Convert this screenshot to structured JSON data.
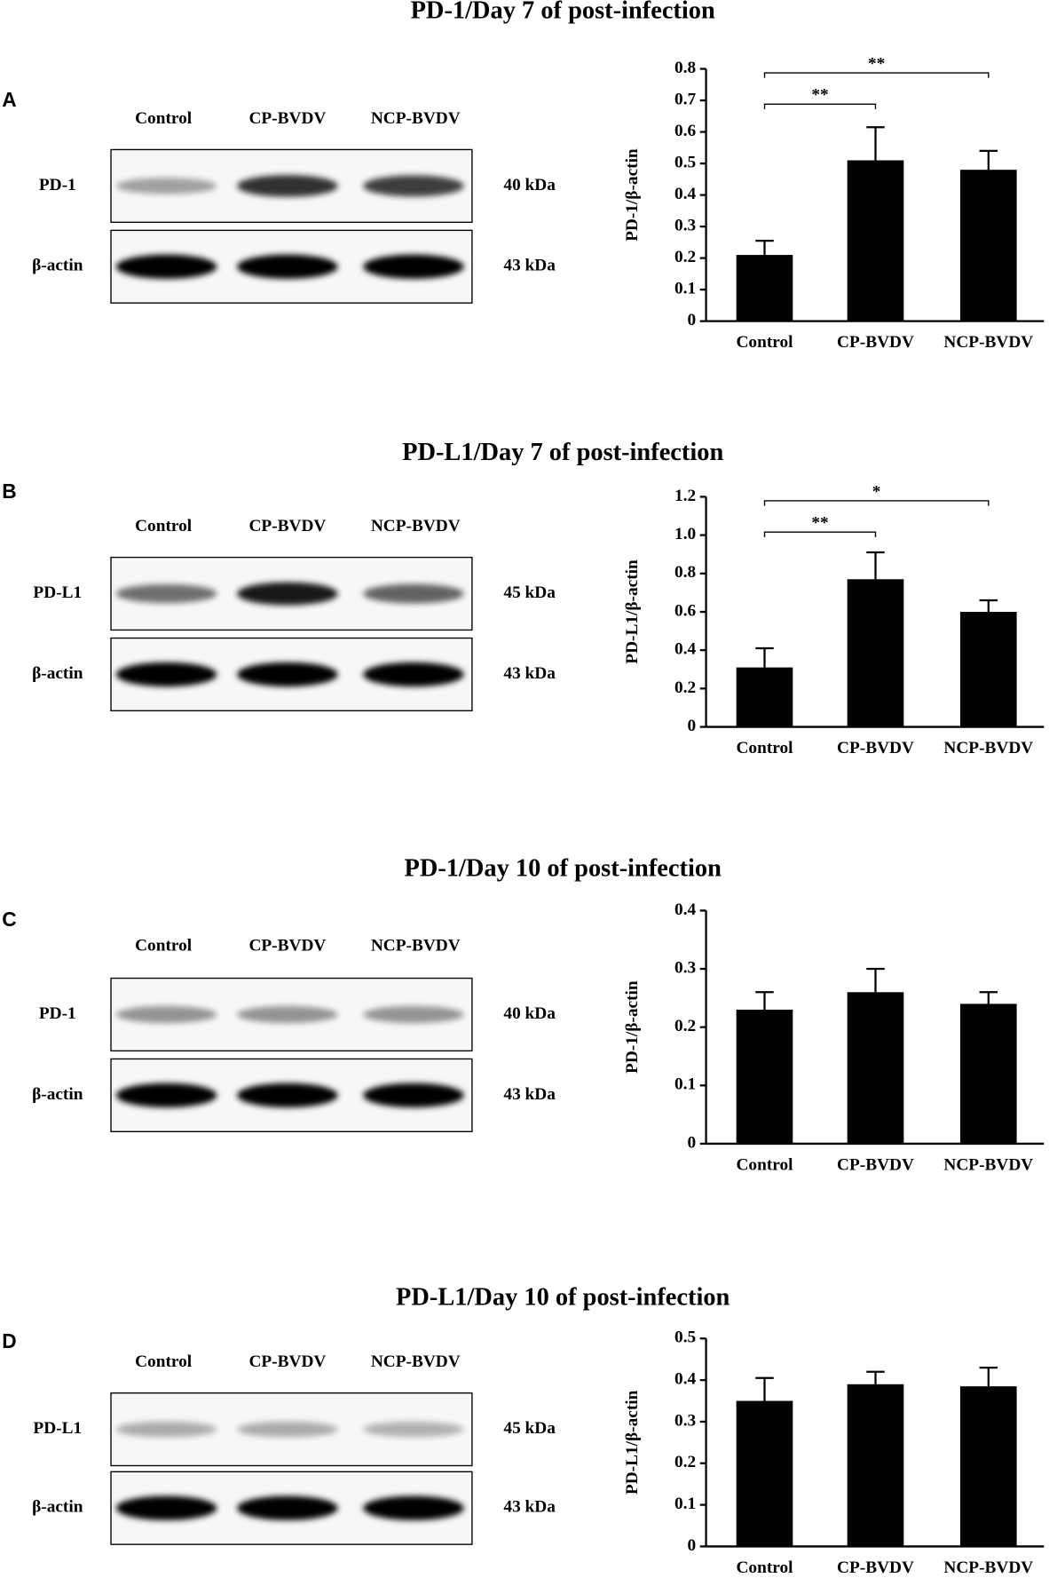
{
  "chart_data": [
    {
      "type": "bar",
      "panel": "A",
      "title": "PD-1/Day 7 of post-infection",
      "lanes": [
        "Control",
        "CP-BVDV",
        "NCP-BVDV"
      ],
      "blot_rows": [
        {
          "label": "PD-1",
          "size": "40 kDa"
        },
        {
          "label": "β-actin",
          "size": "43 kDa"
        }
      ],
      "ylabel": "PD-1/β-actin",
      "categories": [
        "Control",
        "CP-BVDV",
        "NCP-BVDV"
      ],
      "values": [
        0.21,
        0.51,
        0.48
      ],
      "errors": [
        0.045,
        0.105,
        0.06
      ],
      "color": "#000000",
      "annotations": [
        "**",
        "**"
      ],
      "ylim": [
        0,
        0.8
      ],
      "yticks": [
        0,
        0.1,
        0.2,
        0.3,
        0.4,
        0.5,
        0.6,
        0.7,
        0.8
      ]
    },
    {
      "type": "bar",
      "panel": "B",
      "title": "PD-L1/Day 7 of post-infection",
      "lanes": [
        "Control",
        "CP-BVDV",
        "NCP-BVDV"
      ],
      "blot_rows": [
        {
          "label": "PD-L1",
          "size": "45 kDa"
        },
        {
          "label": "β-actin",
          "size": "43 kDa"
        }
      ],
      "ylabel": "PD-L1/β-actin",
      "categories": [
        "Control",
        "CP-BVDV",
        "NCP-BVDV"
      ],
      "values": [
        0.31,
        0.77,
        0.6
      ],
      "errors": [
        0.1,
        0.14,
        0.06
      ],
      "color": "#000000",
      "annotations": [
        "**",
        "*"
      ],
      "ylim": [
        0,
        1.2
      ],
      "yticks": [
        0,
        0.2,
        0.4,
        0.6,
        0.8,
        {
          "value": 1,
          "label": "1.0"
        },
        1.2
      ]
    },
    {
      "type": "bar",
      "panel": "C",
      "title": "PD-1/Day 10 of post-infection",
      "lanes": [
        "Control",
        "CP-BVDV",
        "NCP-BVDV"
      ],
      "blot_rows": [
        {
          "label": "PD-1",
          "size": "40 kDa"
        },
        {
          "label": "β-actin",
          "size": "43 kDa"
        }
      ],
      "ylabel": "PD-1/β-actin",
      "categories": [
        "Control",
        "CP-BVDV",
        "NCP-BVDV"
      ],
      "values": [
        0.23,
        0.26,
        0.24
      ],
      "errors": [
        0.03,
        0.04,
        0.02
      ],
      "color": "#000000",
      "ylim": [
        0,
        0.4
      ],
      "yticks": [
        0,
        0.1,
        0.2,
        0.3,
        0.4
      ]
    },
    {
      "type": "bar",
      "panel": "D",
      "title": "PD-L1/Day 10 of post-infection",
      "lanes": [
        "Control",
        "CP-BVDV",
        "NCP-BVDV"
      ],
      "blot_rows": [
        {
          "label": "PD-L1",
          "size": "45 kDa"
        },
        {
          "label": "β-actin",
          "size": "43 kDa"
        }
      ],
      "ylabel": "PD-L1/β-actin",
      "categories": [
        "Control",
        "CP-BVDV",
        "NCP-BVDV"
      ],
      "values": [
        0.35,
        0.39,
        0.385
      ],
      "errors": [
        0.055,
        0.03,
        0.045
      ],
      "color": "#000000",
      "ylim": [
        0,
        0.5
      ],
      "yticks": [
        0,
        0.1,
        0.2,
        0.3,
        0.4,
        0.5
      ]
    }
  ]
}
